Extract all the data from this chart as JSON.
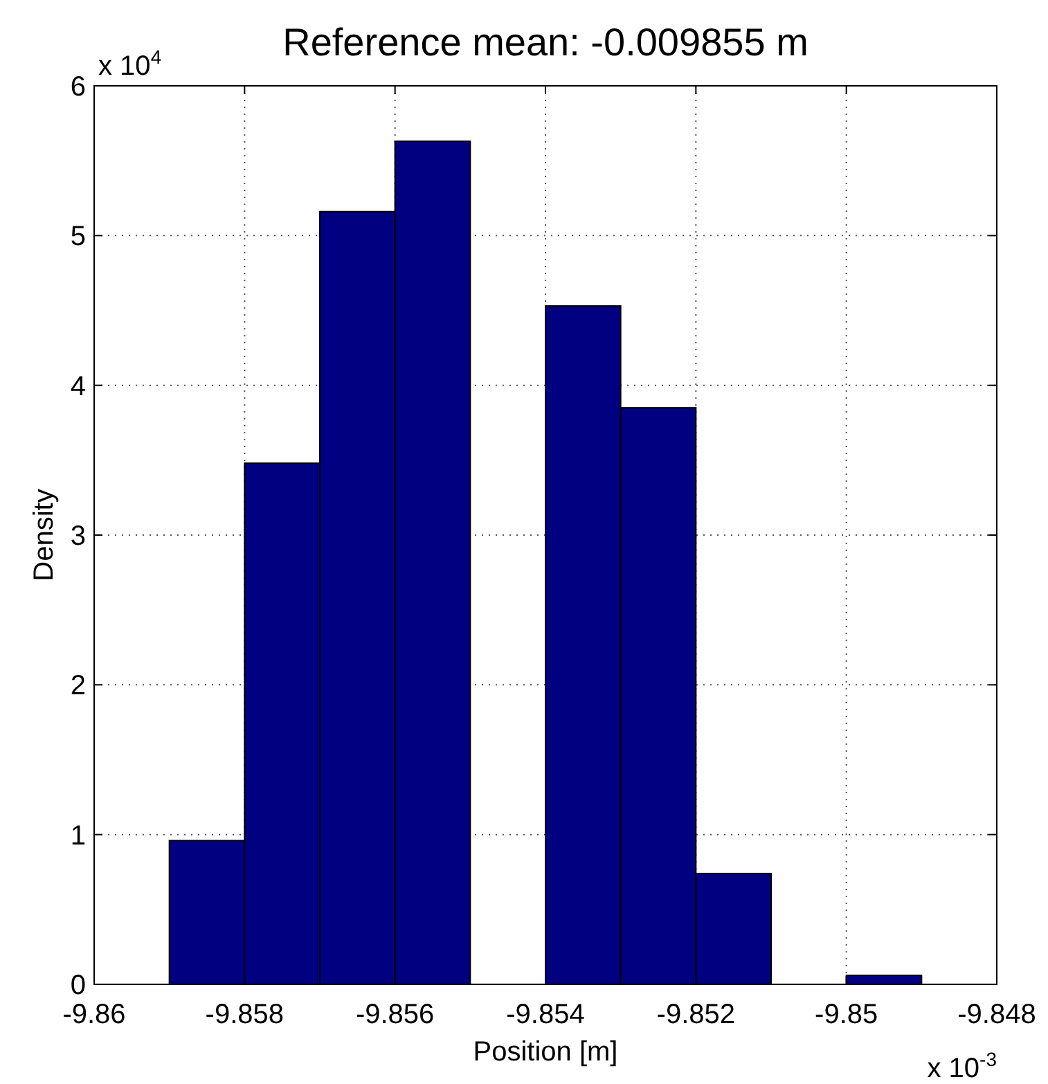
{
  "chart_data": {
    "type": "histogram",
    "title": "Reference mean: -0.009855 m",
    "xlabel": "Position [m]",
    "ylabel": "Density",
    "bins": [
      -9.859,
      -9.858,
      -9.857,
      -9.856,
      -9.855,
      -9.854,
      -9.853,
      -9.852,
      -9.851,
      -9.85,
      -9.849
    ],
    "values": [
      0.96,
      3.48,
      5.16,
      5.63,
      0,
      4.53,
      3.85,
      0.74,
      0,
      0.06
    ],
    "color": "#000080",
    "xlim": [
      -9.86,
      -9.848
    ],
    "xticks": [
      -9.86,
      -9.858,
      -9.856,
      -9.854,
      -9.852,
      -9.85,
      -9.848
    ],
    "ylim": [
      0,
      6
    ],
    "yticks": [
      0,
      1,
      2,
      3,
      4,
      5,
      6
    ],
    "grid": true,
    "annotations": [
      "x 10$^{4}$",
      "x 10$^{-3}$"
    ]
  }
}
